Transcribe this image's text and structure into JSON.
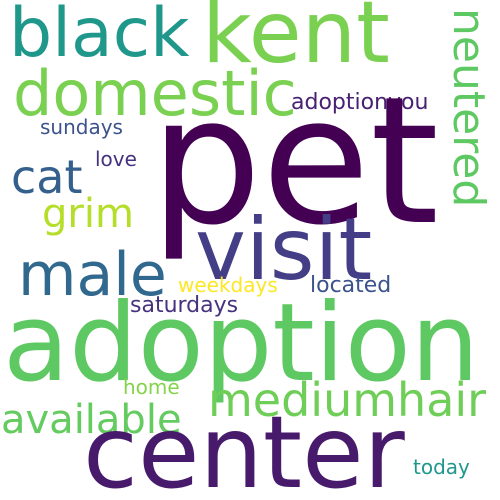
{
  "words": {
    "pet": {
      "text": "pet",
      "color": "#440154"
    },
    "adoption": {
      "text": "adoption",
      "color": "#5ec962"
    },
    "center": {
      "text": "center",
      "color": "#481a6c"
    },
    "kent": {
      "text": "kent",
      "color": "#7ad151"
    },
    "visit": {
      "text": "visit",
      "color": "#433e85"
    },
    "black": {
      "text": "black",
      "color": "#1f988b"
    },
    "domestic": {
      "text": "domestic",
      "color": "#7ad151"
    },
    "male": {
      "text": "male",
      "color": "#31688e"
    },
    "neutered": {
      "text": "neutered",
      "color": "#5ec962"
    },
    "mediumhair": {
      "text": "mediumhair",
      "color": "#6ece58"
    },
    "cat": {
      "text": "cat",
      "color": "#35608d"
    },
    "grim": {
      "text": "grim",
      "color": "#b5de2b"
    },
    "available": {
      "text": "available",
      "color": "#63cb5f"
    },
    "adoptionyou": {
      "text": "adoptionyou",
      "color": "#482173"
    },
    "sundays": {
      "text": "sundays",
      "color": "#3b528b"
    },
    "love": {
      "text": "love",
      "color": "#46327e"
    },
    "weekdays": {
      "text": "weekdays",
      "color": "#fde725"
    },
    "located": {
      "text": "located",
      "color": "#3b528b"
    },
    "saturdays": {
      "text": "saturdays",
      "color": "#46327e"
    },
    "home": {
      "text": "home",
      "color": "#84d44b"
    },
    "today": {
      "text": "today",
      "color": "#1f988b"
    }
  }
}
